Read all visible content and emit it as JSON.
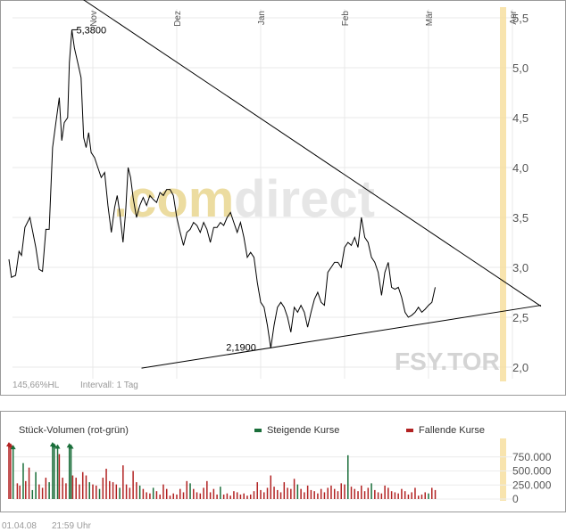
{
  "chart_data": [
    {
      "type": "line",
      "ticker_watermark": "FSY.TOR",
      "watermark": {
        "part1": ".com",
        "part2": "direct"
      },
      "x_months": [
        "Nov",
        "Dez",
        "Jan",
        "Feb",
        "Mär",
        "Apr"
      ],
      "y_ticks": [
        "5,5",
        "5,0",
        "4,5",
        "4,0",
        "3,5",
        "3,0",
        "2,5",
        "2,0"
      ],
      "ylim": [
        1.85,
        5.62
      ],
      "footer_left": "145,66%HL",
      "footer_interval": "Intervall: 1 Tag",
      "annotations": {
        "high": "5,3800",
        "low": "2,1900"
      },
      "high_value": 5.38,
      "low_value": 2.19,
      "trendlines": [
        {
          "name": "resistance",
          "from": [
            -0.18,
            5.72
          ],
          "to": [
            5.34,
            2.61
          ]
        },
        {
          "name": "support",
          "from": [
            0.58,
            1.99
          ],
          "to": [
            5.34,
            2.62
          ]
        }
      ],
      "series": [
        {
          "values": [
            [
              -1.0,
              3.08
            ],
            [
              -0.97,
              2.9
            ],
            [
              -0.92,
              2.92
            ],
            [
              -0.88,
              3.16
            ],
            [
              -0.85,
              3.12
            ],
            [
              -0.81,
              3.4
            ],
            [
              -0.75,
              3.5
            ],
            [
              -0.68,
              3.2
            ],
            [
              -0.64,
              2.98
            ],
            [
              -0.6,
              2.96
            ],
            [
              -0.56,
              3.38
            ],
            [
              -0.52,
              3.38
            ],
            [
              -0.48,
              4.2
            ],
            [
              -0.44,
              4.45
            ],
            [
              -0.4,
              4.7
            ],
            [
              -0.37,
              4.27
            ],
            [
              -0.34,
              4.45
            ],
            [
              -0.3,
              4.5
            ],
            [
              -0.28,
              5.05
            ],
            [
              -0.25,
              5.38
            ],
            [
              -0.22,
              5.2
            ],
            [
              -0.18,
              5.05
            ],
            [
              -0.14,
              4.9
            ],
            [
              -0.11,
              4.3
            ],
            [
              -0.08,
              4.2
            ],
            [
              -0.05,
              4.35
            ],
            [
              -0.02,
              4.15
            ],
            [
              0.02,
              4.1
            ],
            [
              0.06,
              4.0
            ],
            [
              0.1,
              3.9
            ],
            [
              0.14,
              3.95
            ],
            [
              0.18,
              3.62
            ],
            [
              0.22,
              3.35
            ],
            [
              0.26,
              3.6
            ],
            [
              0.29,
              3.72
            ],
            [
              0.32,
              3.55
            ],
            [
              0.36,
              3.25
            ],
            [
              0.39,
              3.55
            ],
            [
              0.42,
              4.0
            ],
            [
              0.45,
              3.9
            ],
            [
              0.48,
              3.7
            ],
            [
              0.52,
              3.5
            ],
            [
              0.56,
              3.62
            ],
            [
              0.6,
              3.7
            ],
            [
              0.64,
              3.62
            ],
            [
              0.68,
              3.72
            ],
            [
              0.72,
              3.68
            ],
            [
              0.76,
              3.65
            ],
            [
              0.8,
              3.75
            ],
            [
              0.84,
              3.72
            ],
            [
              0.88,
              3.78
            ],
            [
              0.92,
              3.78
            ],
            [
              0.96,
              3.72
            ],
            [
              1.0,
              3.5
            ],
            [
              1.04,
              3.35
            ],
            [
              1.08,
              3.22
            ],
            [
              1.12,
              3.35
            ],
            [
              1.16,
              3.38
            ],
            [
              1.2,
              3.45
            ],
            [
              1.24,
              3.42
            ],
            [
              1.28,
              3.35
            ],
            [
              1.32,
              3.45
            ],
            [
              1.36,
              3.38
            ],
            [
              1.4,
              3.25
            ],
            [
              1.44,
              3.4
            ],
            [
              1.48,
              3.4
            ],
            [
              1.52,
              3.45
            ],
            [
              1.56,
              3.42
            ],
            [
              1.6,
              3.5
            ],
            [
              1.64,
              3.55
            ],
            [
              1.68,
              3.45
            ],
            [
              1.72,
              3.35
            ],
            [
              1.76,
              3.45
            ],
            [
              1.8,
              3.3
            ],
            [
              1.84,
              3.1
            ],
            [
              1.88,
              3.15
            ],
            [
              1.92,
              3.1
            ],
            [
              1.96,
              2.85
            ],
            [
              2.0,
              2.65
            ],
            [
              2.04,
              2.6
            ],
            [
              2.08,
              2.42
            ],
            [
              2.12,
              2.19
            ],
            [
              2.16,
              2.42
            ],
            [
              2.2,
              2.6
            ],
            [
              2.24,
              2.65
            ],
            [
              2.28,
              2.6
            ],
            [
              2.32,
              2.5
            ],
            [
              2.36,
              2.35
            ],
            [
              2.4,
              2.6
            ],
            [
              2.44,
              2.55
            ],
            [
              2.48,
              2.62
            ],
            [
              2.52,
              2.55
            ],
            [
              2.56,
              2.4
            ],
            [
              2.6,
              2.55
            ],
            [
              2.64,
              2.68
            ],
            [
              2.68,
              2.75
            ],
            [
              2.72,
              2.65
            ],
            [
              2.76,
              2.62
            ],
            [
              2.8,
              2.95
            ],
            [
              2.84,
              3.0
            ],
            [
              2.88,
              3.05
            ],
            [
              2.92,
              3.05
            ],
            [
              2.96,
              3.0
            ],
            [
              3.0,
              3.2
            ],
            [
              3.04,
              3.25
            ],
            [
              3.08,
              3.22
            ],
            [
              3.12,
              3.3
            ],
            [
              3.16,
              3.2
            ],
            [
              3.2,
              3.5
            ],
            [
              3.24,
              3.3
            ],
            [
              3.28,
              3.25
            ],
            [
              3.32,
              3.1
            ],
            [
              3.36,
              3.05
            ],
            [
              3.4,
              2.95
            ],
            [
              3.44,
              2.72
            ],
            [
              3.48,
              2.95
            ],
            [
              3.52,
              3.05
            ],
            [
              3.56,
              2.8
            ],
            [
              3.6,
              2.78
            ],
            [
              3.64,
              2.8
            ],
            [
              3.68,
              2.7
            ],
            [
              3.72,
              2.55
            ],
            [
              3.76,
              2.5
            ],
            [
              3.8,
              2.52
            ],
            [
              3.84,
              2.55
            ],
            [
              3.88,
              2.6
            ],
            [
              3.92,
              2.55
            ],
            [
              3.96,
              2.58
            ],
            [
              4.0,
              2.62
            ],
            [
              4.04,
              2.65
            ],
            [
              4.08,
              2.8
            ]
          ]
        }
      ]
    },
    {
      "type": "bar",
      "title": "Stück-Volumen (rot-grün)",
      "legend": {
        "up": "Steigende Kurse",
        "down": "Fallende Kurse"
      },
      "y_ticks": [
        "750.000",
        "500.000",
        "250.000",
        "0"
      ],
      "ylim": [
        0,
        1000000
      ],
      "colors": {
        "up": "#1a6e3a",
        "down": "#b22222"
      },
      "bars": [
        [
          -1.0,
          1000000,
          "down"
        ],
        [
          -0.98,
          980000,
          "down"
        ],
        [
          -0.95,
          950000,
          "up"
        ],
        [
          -0.9,
          280000,
          "down"
        ],
        [
          -0.87,
          240000,
          "down"
        ],
        [
          -0.83,
          640000,
          "up"
        ],
        [
          -0.8,
          320000,
          "down"
        ],
        [
          -0.76,
          560000,
          "down"
        ],
        [
          -0.72,
          160000,
          "up"
        ],
        [
          -0.68,
          480000,
          "up"
        ],
        [
          -0.64,
          260000,
          "down"
        ],
        [
          -0.6,
          200000,
          "down"
        ],
        [
          -0.56,
          380000,
          "down"
        ],
        [
          -0.52,
          300000,
          "up"
        ],
        [
          -0.48,
          1000000,
          "up"
        ],
        [
          -0.46,
          980000,
          "up"
        ],
        [
          -0.42,
          960000,
          "up"
        ],
        [
          -0.4,
          800000,
          "down"
        ],
        [
          -0.36,
          380000,
          "down"
        ],
        [
          -0.32,
          280000,
          "down"
        ],
        [
          -0.28,
          980000,
          "up"
        ],
        [
          -0.26,
          960000,
          "up"
        ],
        [
          -0.24,
          420000,
          "down"
        ],
        [
          -0.2,
          380000,
          "down"
        ],
        [
          -0.16,
          260000,
          "down"
        ],
        [
          -0.12,
          480000,
          "down"
        ],
        [
          -0.08,
          420000,
          "down"
        ],
        [
          -0.04,
          300000,
          "up"
        ],
        [
          0.0,
          260000,
          "down"
        ],
        [
          0.04,
          240000,
          "down"
        ],
        [
          0.08,
          180000,
          "up"
        ],
        [
          0.12,
          380000,
          "down"
        ],
        [
          0.16,
          540000,
          "down"
        ],
        [
          0.2,
          320000,
          "down"
        ],
        [
          0.24,
          300000,
          "down"
        ],
        [
          0.28,
          260000,
          "down"
        ],
        [
          0.32,
          200000,
          "up"
        ],
        [
          0.36,
          600000,
          "down"
        ],
        [
          0.4,
          260000,
          "down"
        ],
        [
          0.44,
          200000,
          "down"
        ],
        [
          0.48,
          500000,
          "down"
        ],
        [
          0.52,
          300000,
          "down"
        ],
        [
          0.56,
          240000,
          "up"
        ],
        [
          0.6,
          180000,
          "down"
        ],
        [
          0.64,
          120000,
          "down"
        ],
        [
          0.68,
          100000,
          "down"
        ],
        [
          0.72,
          200000,
          "up"
        ],
        [
          0.76,
          140000,
          "down"
        ],
        [
          0.8,
          80000,
          "down"
        ],
        [
          0.84,
          260000,
          "down"
        ],
        [
          0.88,
          180000,
          "down"
        ],
        [
          0.92,
          60000,
          "down"
        ],
        [
          0.96,
          100000,
          "down"
        ],
        [
          1.0,
          80000,
          "down"
        ],
        [
          1.04,
          180000,
          "down"
        ],
        [
          1.08,
          120000,
          "down"
        ],
        [
          1.12,
          320000,
          "down"
        ],
        [
          1.16,
          280000,
          "up"
        ],
        [
          1.2,
          180000,
          "down"
        ],
        [
          1.24,
          120000,
          "down"
        ],
        [
          1.28,
          100000,
          "down"
        ],
        [
          1.32,
          200000,
          "down"
        ],
        [
          1.36,
          320000,
          "down"
        ],
        [
          1.4,
          120000,
          "down"
        ],
        [
          1.44,
          180000,
          "down"
        ],
        [
          1.48,
          80000,
          "down"
        ],
        [
          1.52,
          220000,
          "up"
        ],
        [
          1.56,
          80000,
          "down"
        ],
        [
          1.6,
          100000,
          "down"
        ],
        [
          1.64,
          60000,
          "down"
        ],
        [
          1.68,
          140000,
          "down"
        ],
        [
          1.72,
          120000,
          "down"
        ],
        [
          1.76,
          80000,
          "down"
        ],
        [
          1.8,
          100000,
          "down"
        ],
        [
          1.84,
          60000,
          "down"
        ],
        [
          1.88,
          80000,
          "down"
        ],
        [
          1.92,
          140000,
          "down"
        ],
        [
          1.96,
          300000,
          "down"
        ],
        [
          2.0,
          160000,
          "down"
        ],
        [
          2.04,
          120000,
          "down"
        ],
        [
          2.08,
          200000,
          "down"
        ],
        [
          2.12,
          420000,
          "down"
        ],
        [
          2.16,
          220000,
          "down"
        ],
        [
          2.2,
          160000,
          "down"
        ],
        [
          2.24,
          120000,
          "down"
        ],
        [
          2.28,
          300000,
          "down"
        ],
        [
          2.32,
          200000,
          "down"
        ],
        [
          2.36,
          180000,
          "down"
        ],
        [
          2.4,
          360000,
          "down"
        ],
        [
          2.44,
          260000,
          "up"
        ],
        [
          2.48,
          180000,
          "down"
        ],
        [
          2.52,
          120000,
          "down"
        ],
        [
          2.56,
          240000,
          "down"
        ],
        [
          2.6,
          160000,
          "down"
        ],
        [
          2.64,
          140000,
          "down"
        ],
        [
          2.68,
          100000,
          "down"
        ],
        [
          2.72,
          180000,
          "down"
        ],
        [
          2.76,
          120000,
          "down"
        ],
        [
          2.8,
          200000,
          "down"
        ],
        [
          2.84,
          240000,
          "down"
        ],
        [
          2.88,
          180000,
          "down"
        ],
        [
          2.92,
          140000,
          "down"
        ],
        [
          2.96,
          280000,
          "down"
        ],
        [
          3.0,
          260000,
          "down"
        ],
        [
          3.04,
          780000,
          "up"
        ],
        [
          3.08,
          220000,
          "down"
        ],
        [
          3.12,
          180000,
          "down"
        ],
        [
          3.16,
          140000,
          "down"
        ],
        [
          3.2,
          240000,
          "down"
        ],
        [
          3.24,
          140000,
          "down"
        ],
        [
          3.28,
          200000,
          "down"
        ],
        [
          3.32,
          280000,
          "up"
        ],
        [
          3.36,
          160000,
          "down"
        ],
        [
          3.4,
          120000,
          "down"
        ],
        [
          3.44,
          100000,
          "down"
        ],
        [
          3.48,
          240000,
          "down"
        ],
        [
          3.52,
          200000,
          "down"
        ],
        [
          3.56,
          140000,
          "down"
        ],
        [
          3.6,
          120000,
          "down"
        ],
        [
          3.64,
          100000,
          "down"
        ],
        [
          3.68,
          180000,
          "down"
        ],
        [
          3.72,
          140000,
          "down"
        ],
        [
          3.76,
          80000,
          "down"
        ],
        [
          3.8,
          120000,
          "down"
        ],
        [
          3.84,
          200000,
          "down"
        ],
        [
          3.88,
          60000,
          "down"
        ],
        [
          3.92,
          80000,
          "down"
        ],
        [
          3.96,
          120000,
          "down"
        ],
        [
          4.0,
          100000,
          "up"
        ],
        [
          4.04,
          200000,
          "down"
        ],
        [
          4.08,
          160000,
          "down"
        ]
      ]
    }
  ],
  "footer": {
    "date": "01.04.08",
    "time": "21:59 Uhr"
  }
}
